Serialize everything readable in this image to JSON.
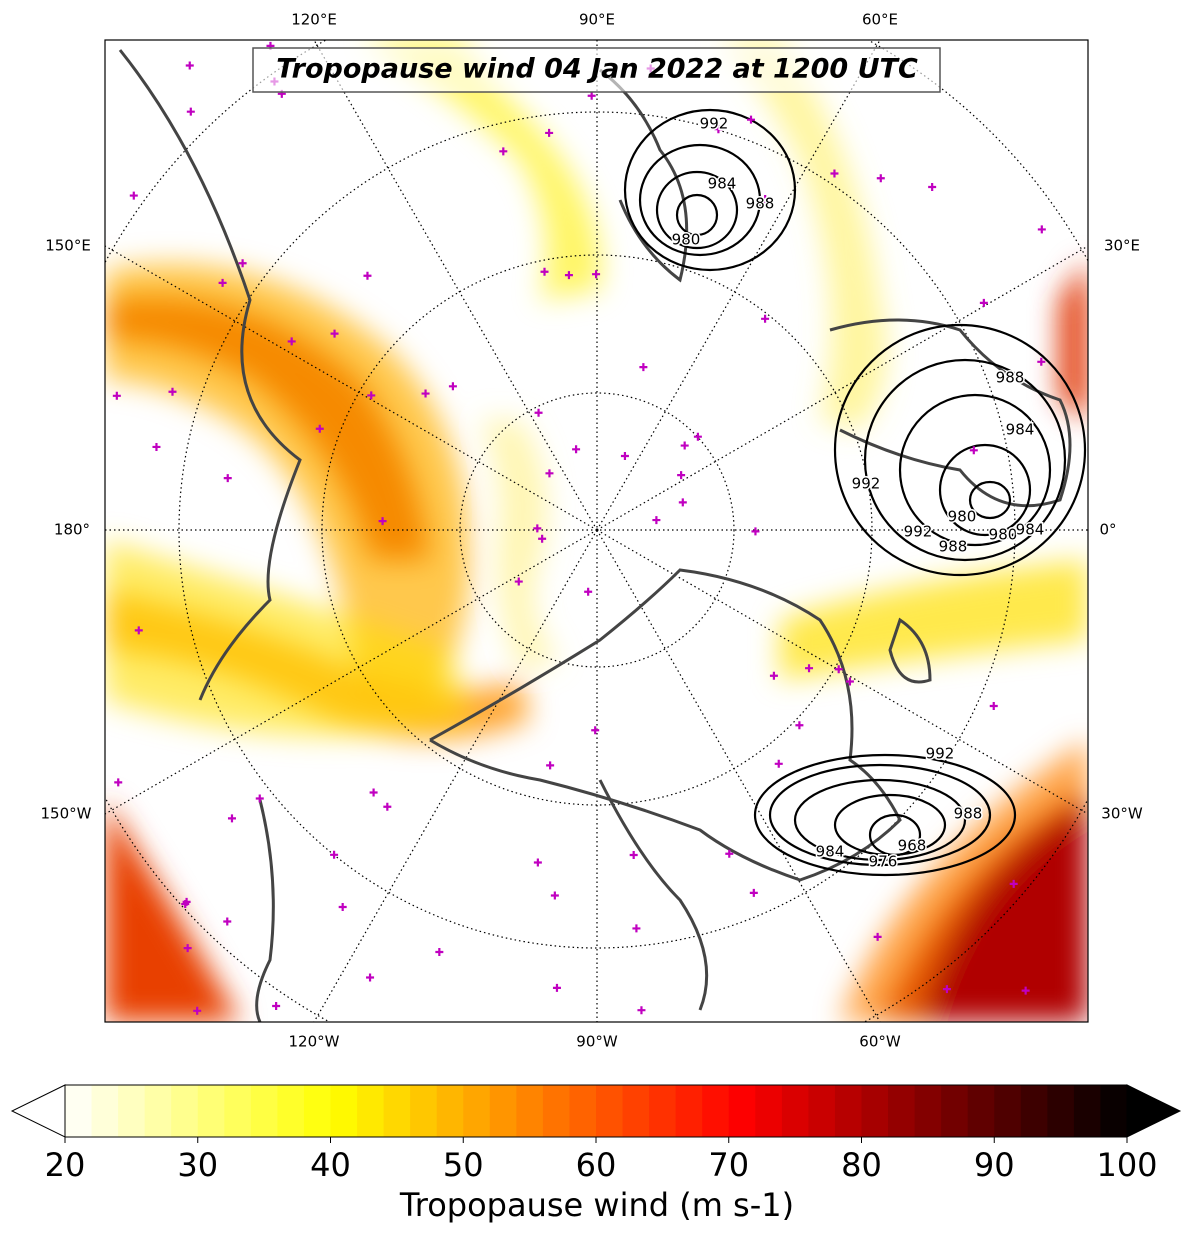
{
  "title": "Tropopause wind 04 Jan 2022 at 1200 UTC",
  "map": {
    "labels_top": [
      "120°E",
      "90°E",
      "60°E"
    ],
    "labels_bottom": [
      "120°W",
      "90°W",
      "60°W"
    ],
    "labels_left": [
      "150°E",
      "180°",
      "150°W"
    ],
    "labels_right": [
      "30°E",
      "0°",
      "30°W"
    ],
    "contour_labels": [
      992,
      984,
      988,
      980,
      988,
      984,
      992,
      980,
      980,
      984,
      992,
      988,
      992,
      988,
      984,
      976,
      968
    ]
  },
  "colorbar": {
    "label": "Tropopause wind (m s-1)",
    "range": [
      20,
      100
    ],
    "ticks": [
      20,
      30,
      40,
      50,
      60,
      70,
      80,
      90,
      100
    ],
    "colormap": "hot_r",
    "extend": "both"
  }
}
